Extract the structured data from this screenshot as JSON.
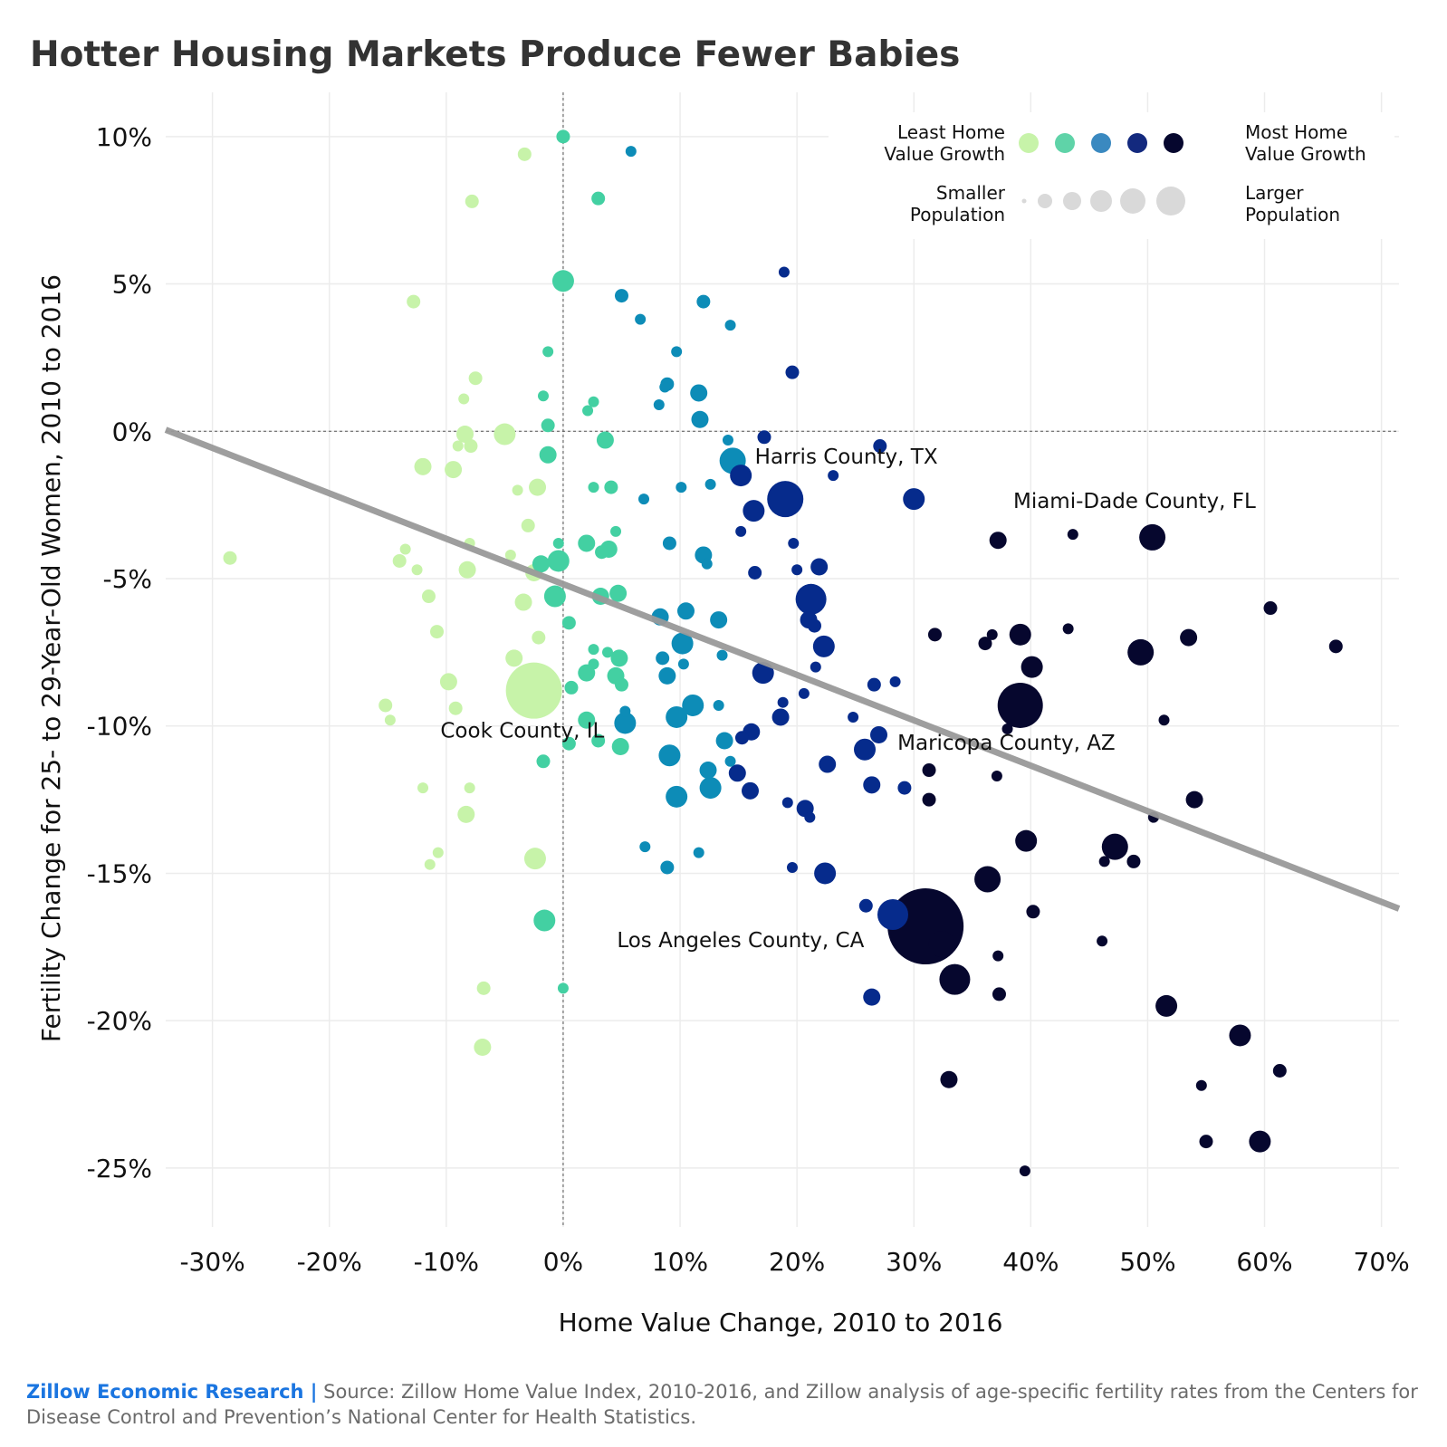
{
  "chart_data": {
    "type": "scatter",
    "title": "Hotter Housing Markets Produce Fewer Babies",
    "xlabel": "Home Value Change, 2010 to 2016",
    "ylabel": "Fertility Change for 25- to 29-Year-Old Women, 2010 to 2016",
    "xlim": [
      -34,
      71.5
    ],
    "ylim": [
      -27,
      11.5
    ],
    "x_ticks": [
      -30,
      -20,
      -10,
      0,
      10,
      20,
      30,
      40,
      50,
      60,
      70
    ],
    "x_tick_labels": [
      "-30%",
      "-20%",
      "-10%",
      "0%",
      "10%",
      "20%",
      "30%",
      "40%",
      "50%",
      "60%",
      "70%"
    ],
    "y_ticks": [
      10,
      5,
      0,
      -5,
      -10,
      -15,
      -20,
      -25
    ],
    "y_tick_labels": [
      "10%",
      "5%",
      "0%",
      "-5%",
      "-10%",
      "-15%",
      "-20%",
      "-25%"
    ],
    "grid": true,
    "reference_lines": {
      "x": 0,
      "y": 0
    },
    "trend_line": {
      "x": [
        -34,
        71.5
      ],
      "y": [
        0.05,
        -16.2
      ],
      "color": "#999999"
    },
    "color_scale": [
      "#c7f3a9",
      "#43d0a2",
      "#0d8cb7",
      "#062b8c",
      "#06072e"
    ],
    "legend": {
      "placement": "top-right",
      "color_left": "Least Home Value Growth",
      "color_right": "Most Home Value Growth",
      "size_left": "Smaller Population",
      "size_right": "Larger Population",
      "color_swatches": [
        "#c7f3a9",
        "#5fd3a8",
        "#3a89c0",
        "#13297e",
        "#06072e"
      ],
      "size_swatch_color": "#d9d9d9"
    },
    "annotations": [
      {
        "text": "Harris County, TX",
        "x": 16.4,
        "y": -1.1
      },
      {
        "text": "Miami-Dade County, FL",
        "x": 38.5,
        "y": -2.6
      },
      {
        "text": "Cook County, IL",
        "x": -10.5,
        "y": -10.4
      },
      {
        "text": "Maricopa County, AZ",
        "x": 28.6,
        "y": -10.8
      },
      {
        "text": "Los Angeles County, CA",
        "x": 4.6,
        "y": -17.5
      }
    ],
    "points": [
      {
        "x": 0.0,
        "y": 10.0,
        "s": 2,
        "c": 1
      },
      {
        "x": -3.3,
        "y": 9.4,
        "s": 2,
        "c": 0
      },
      {
        "x": 5.8,
        "y": 9.5,
        "s": 1,
        "c": 2
      },
      {
        "x": -7.8,
        "y": 7.8,
        "s": 2,
        "c": 0
      },
      {
        "x": 3.0,
        "y": 7.9,
        "s": 2,
        "c": 1
      },
      {
        "x": 0.0,
        "y": 5.1,
        "s": 4,
        "c": 1
      },
      {
        "x": -12.8,
        "y": 4.4,
        "s": 2,
        "c": 0
      },
      {
        "x": 5.0,
        "y": 4.6,
        "s": 2,
        "c": 2
      },
      {
        "x": 6.6,
        "y": 3.8,
        "s": 1,
        "c": 2
      },
      {
        "x": 12.0,
        "y": 4.4,
        "s": 2,
        "c": 2
      },
      {
        "x": 14.3,
        "y": 3.6,
        "s": 1,
        "c": 2
      },
      {
        "x": 18.9,
        "y": 5.4,
        "s": 1,
        "c": 3
      },
      {
        "x": -1.3,
        "y": 2.7,
        "s": 1,
        "c": 1
      },
      {
        "x": 9.7,
        "y": 2.7,
        "s": 1,
        "c": 2
      },
      {
        "x": -7.5,
        "y": 1.8,
        "s": 2,
        "c": 0
      },
      {
        "x": -8.5,
        "y": 1.1,
        "s": 1,
        "c": 0
      },
      {
        "x": -1.7,
        "y": 1.2,
        "s": 1,
        "c": 1
      },
      {
        "x": 2.6,
        "y": 1.0,
        "s": 1,
        "c": 1
      },
      {
        "x": 2.1,
        "y": 0.7,
        "s": 1,
        "c": 1
      },
      {
        "x": 8.9,
        "y": 1.6,
        "s": 2,
        "c": 2
      },
      {
        "x": 8.7,
        "y": 1.5,
        "s": 1,
        "c": 2
      },
      {
        "x": 11.6,
        "y": 1.3,
        "s": 3,
        "c": 2
      },
      {
        "x": 8.2,
        "y": 0.9,
        "s": 1,
        "c": 2
      },
      {
        "x": 11.7,
        "y": 0.4,
        "s": 3,
        "c": 2
      },
      {
        "x": 19.6,
        "y": 2.0,
        "s": 2,
        "c": 3
      },
      {
        "x": -1.3,
        "y": 0.2,
        "s": 2,
        "c": 1
      },
      {
        "x": -8.4,
        "y": -0.1,
        "s": 3,
        "c": 0
      },
      {
        "x": -5.0,
        "y": -0.1,
        "s": 4,
        "c": 0
      },
      {
        "x": -9.0,
        "y": -0.5,
        "s": 1,
        "c": 0
      },
      {
        "x": -7.9,
        "y": -0.5,
        "s": 2,
        "c": 0
      },
      {
        "x": 3.6,
        "y": -0.3,
        "s": 3,
        "c": 1
      },
      {
        "x": 14.1,
        "y": -0.3,
        "s": 1,
        "c": 2
      },
      {
        "x": 17.2,
        "y": -0.2,
        "s": 2,
        "c": 3
      },
      {
        "x": 27.1,
        "y": -0.5,
        "s": 2,
        "c": 3
      },
      {
        "x": -1.3,
        "y": -0.8,
        "s": 3,
        "c": 1
      },
      {
        "x": 14.5,
        "y": -1.0,
        "s": 5,
        "c": 2
      },
      {
        "x": -12.0,
        "y": -1.2,
        "s": 3,
        "c": 0
      },
      {
        "x": -9.4,
        "y": -1.3,
        "s": 3,
        "c": 0
      },
      {
        "x": 15.2,
        "y": -1.5,
        "s": 4,
        "c": 3
      },
      {
        "x": 23.1,
        "y": -1.5,
        "s": 1,
        "c": 3
      },
      {
        "x": -2.2,
        "y": -1.9,
        "s": 3,
        "c": 0
      },
      {
        "x": -3.9,
        "y": -2.0,
        "s": 1,
        "c": 0
      },
      {
        "x": 2.6,
        "y": -1.9,
        "s": 1,
        "c": 1
      },
      {
        "x": 4.1,
        "y": -1.9,
        "s": 2,
        "c": 1
      },
      {
        "x": 10.1,
        "y": -1.9,
        "s": 1,
        "c": 2
      },
      {
        "x": 12.6,
        "y": -1.8,
        "s": 1,
        "c": 2
      },
      {
        "x": 6.9,
        "y": -2.3,
        "s": 1,
        "c": 2
      },
      {
        "x": 19.0,
        "y": -2.3,
        "s": 7,
        "c": 3
      },
      {
        "x": 30.0,
        "y": -2.3,
        "s": 4,
        "c": 3
      },
      {
        "x": 16.3,
        "y": -2.7,
        "s": 4,
        "c": 3
      },
      {
        "x": 15.2,
        "y": -3.4,
        "s": 1,
        "c": 3
      },
      {
        "x": -3.0,
        "y": -3.2,
        "s": 2,
        "c": 0
      },
      {
        "x": 4.5,
        "y": -3.4,
        "s": 1,
        "c": 1
      },
      {
        "x": 43.6,
        "y": -3.5,
        "s": 1,
        "c": 4
      },
      {
        "x": 37.2,
        "y": -3.7,
        "s": 3,
        "c": 4
      },
      {
        "x": 50.4,
        "y": -3.6,
        "s": 5,
        "c": 4
      },
      {
        "x": -13.5,
        "y": -4.0,
        "s": 1,
        "c": 0
      },
      {
        "x": -8.0,
        "y": -3.8,
        "s": 1,
        "c": 0
      },
      {
        "x": -0.4,
        "y": -3.8,
        "s": 1,
        "c": 1
      },
      {
        "x": 2.0,
        "y": -3.8,
        "s": 3,
        "c": 1
      },
      {
        "x": 3.9,
        "y": -4.0,
        "s": 3,
        "c": 1
      },
      {
        "x": 3.3,
        "y": -4.1,
        "s": 2,
        "c": 1
      },
      {
        "x": 9.1,
        "y": -3.8,
        "s": 2,
        "c": 2
      },
      {
        "x": 19.7,
        "y": -3.8,
        "s": 1,
        "c": 3
      },
      {
        "x": -4.5,
        "y": -4.2,
        "s": 1,
        "c": 0
      },
      {
        "x": -28.5,
        "y": -4.3,
        "s": 2,
        "c": 0
      },
      {
        "x": -14.0,
        "y": -4.4,
        "s": 2,
        "c": 0
      },
      {
        "x": -12.5,
        "y": -4.7,
        "s": 1,
        "c": 0
      },
      {
        "x": -8.2,
        "y": -4.7,
        "s": 3,
        "c": 0
      },
      {
        "x": -2.5,
        "y": -4.8,
        "s": 3,
        "c": 0
      },
      {
        "x": -1.9,
        "y": -4.5,
        "s": 3,
        "c": 1
      },
      {
        "x": -0.4,
        "y": -4.4,
        "s": 4,
        "c": 1
      },
      {
        "x": 12.0,
        "y": -4.2,
        "s": 3,
        "c": 2
      },
      {
        "x": 12.3,
        "y": -4.5,
        "s": 1,
        "c": 2
      },
      {
        "x": 16.4,
        "y": -4.8,
        "s": 2,
        "c": 3
      },
      {
        "x": 20.0,
        "y": -4.7,
        "s": 1,
        "c": 3
      },
      {
        "x": 21.9,
        "y": -4.6,
        "s": 3,
        "c": 3
      },
      {
        "x": -11.5,
        "y": -5.6,
        "s": 2,
        "c": 0
      },
      {
        "x": -3.4,
        "y": -5.8,
        "s": 3,
        "c": 0
      },
      {
        "x": -0.7,
        "y": -5.6,
        "s": 4,
        "c": 1
      },
      {
        "x": 3.2,
        "y": -5.6,
        "s": 3,
        "c": 1
      },
      {
        "x": 4.7,
        "y": -5.5,
        "s": 3,
        "c": 1
      },
      {
        "x": 21.2,
        "y": -5.7,
        "s": 6,
        "c": 3
      },
      {
        "x": 60.5,
        "y": -6.0,
        "s": 2,
        "c": 4
      },
      {
        "x": 0.5,
        "y": -6.5,
        "s": 2,
        "c": 1
      },
      {
        "x": 8.3,
        "y": -6.3,
        "s": 3,
        "c": 2
      },
      {
        "x": 10.5,
        "y": -6.1,
        "s": 3,
        "c": 2
      },
      {
        "x": 13.3,
        "y": -6.4,
        "s": 3,
        "c": 2
      },
      {
        "x": 21.0,
        "y": -6.4,
        "s": 3,
        "c": 3
      },
      {
        "x": 21.5,
        "y": -6.6,
        "s": 2,
        "c": 3
      },
      {
        "x": -10.8,
        "y": -6.8,
        "s": 2,
        "c": 0
      },
      {
        "x": -2.1,
        "y": -7.0,
        "s": 2,
        "c": 0
      },
      {
        "x": 10.2,
        "y": -7.2,
        "s": 4,
        "c": 2
      },
      {
        "x": 22.3,
        "y": -7.3,
        "s": 4,
        "c": 3
      },
      {
        "x": 31.8,
        "y": -6.9,
        "s": 2,
        "c": 4
      },
      {
        "x": 36.1,
        "y": -7.2,
        "s": 2,
        "c": 4
      },
      {
        "x": 36.7,
        "y": -6.9,
        "s": 1,
        "c": 4
      },
      {
        "x": 39.1,
        "y": -6.9,
        "s": 4,
        "c": 4
      },
      {
        "x": 43.2,
        "y": -6.7,
        "s": 1,
        "c": 4
      },
      {
        "x": 49.4,
        "y": -7.5,
        "s": 5,
        "c": 4
      },
      {
        "x": 53.5,
        "y": -7.0,
        "s": 3,
        "c": 4
      },
      {
        "x": 66.1,
        "y": -7.3,
        "s": 2,
        "c": 4
      },
      {
        "x": -4.2,
        "y": -7.7,
        "s": 3,
        "c": 0
      },
      {
        "x": 2.6,
        "y": -7.4,
        "s": 1,
        "c": 1
      },
      {
        "x": 3.8,
        "y": -7.5,
        "s": 1,
        "c": 1
      },
      {
        "x": 4.8,
        "y": -7.7,
        "s": 3,
        "c": 1
      },
      {
        "x": 8.5,
        "y": -7.7,
        "s": 2,
        "c": 2
      },
      {
        "x": 10.3,
        "y": -7.9,
        "s": 1,
        "c": 2
      },
      {
        "x": 13.6,
        "y": -7.6,
        "s": 1,
        "c": 2
      },
      {
        "x": 21.6,
        "y": -8.0,
        "s": 1,
        "c": 3
      },
      {
        "x": 40.1,
        "y": -8.0,
        "s": 4,
        "c": 4
      },
      {
        "x": -2.5,
        "y": -8.8,
        "s": 9,
        "c": 0
      },
      {
        "x": 2.0,
        "y": -8.2,
        "s": 3,
        "c": 1
      },
      {
        "x": 2.6,
        "y": -7.9,
        "s": 1,
        "c": 1
      },
      {
        "x": 4.5,
        "y": -8.3,
        "s": 3,
        "c": 1
      },
      {
        "x": 8.9,
        "y": -8.3,
        "s": 3,
        "c": 2
      },
      {
        "x": 17.1,
        "y": -8.2,
        "s": 4,
        "c": 3
      },
      {
        "x": -9.8,
        "y": -8.5,
        "s": 3,
        "c": 0
      },
      {
        "x": 0.7,
        "y": -8.7,
        "s": 2,
        "c": 1
      },
      {
        "x": 5.0,
        "y": -8.6,
        "s": 2,
        "c": 1
      },
      {
        "x": 26.6,
        "y": -8.6,
        "s": 2,
        "c": 3
      },
      {
        "x": 28.4,
        "y": -8.5,
        "s": 1,
        "c": 3
      },
      {
        "x": -15.2,
        "y": -9.3,
        "s": 2,
        "c": 0
      },
      {
        "x": -9.2,
        "y": -9.4,
        "s": 2,
        "c": 0
      },
      {
        "x": 5.3,
        "y": -9.5,
        "s": 1,
        "c": 2
      },
      {
        "x": 11.1,
        "y": -9.3,
        "s": 4,
        "c": 2
      },
      {
        "x": 13.3,
        "y": -9.3,
        "s": 1,
        "c": 2
      },
      {
        "x": 18.8,
        "y": -9.2,
        "s": 1,
        "c": 3
      },
      {
        "x": 20.6,
        "y": -8.9,
        "s": 1,
        "c": 3
      },
      {
        "x": 39.1,
        "y": -9.3,
        "s": 8,
        "c": 4
      },
      {
        "x": -14.8,
        "y": -9.8,
        "s": 1,
        "c": 0
      },
      {
        "x": 2.0,
        "y": -9.8,
        "s": 3,
        "c": 1
      },
      {
        "x": 5.3,
        "y": -9.9,
        "s": 4,
        "c": 2
      },
      {
        "x": 9.7,
        "y": -9.7,
        "s": 4,
        "c": 2
      },
      {
        "x": 18.6,
        "y": -9.7,
        "s": 3,
        "c": 3
      },
      {
        "x": 24.8,
        "y": -9.7,
        "s": 1,
        "c": 3
      },
      {
        "x": 38.0,
        "y": -10.1,
        "s": 1,
        "c": 4
      },
      {
        "x": 51.4,
        "y": -9.8,
        "s": 1,
        "c": 4
      },
      {
        "x": 0.5,
        "y": -10.6,
        "s": 2,
        "c": 1
      },
      {
        "x": 3.0,
        "y": -10.5,
        "s": 2,
        "c": 1
      },
      {
        "x": 4.9,
        "y": -10.7,
        "s": 3,
        "c": 1
      },
      {
        "x": 13.8,
        "y": -10.5,
        "s": 3,
        "c": 2
      },
      {
        "x": 15.3,
        "y": -10.4,
        "s": 2,
        "c": 3
      },
      {
        "x": 16.1,
        "y": -10.2,
        "s": 3,
        "c": 3
      },
      {
        "x": 27.0,
        "y": -10.3,
        "s": 3,
        "c": 3
      },
      {
        "x": -1.7,
        "y": -11.2,
        "s": 2,
        "c": 1
      },
      {
        "x": 9.1,
        "y": -11.0,
        "s": 4,
        "c": 2
      },
      {
        "x": 12.4,
        "y": -11.5,
        "s": 3,
        "c": 2
      },
      {
        "x": 14.3,
        "y": -11.2,
        "s": 1,
        "c": 2
      },
      {
        "x": 14.9,
        "y": -11.6,
        "s": 3,
        "c": 3
      },
      {
        "x": 22.6,
        "y": -11.3,
        "s": 3,
        "c": 3
      },
      {
        "x": 25.8,
        "y": -10.8,
        "s": 4,
        "c": 3
      },
      {
        "x": 31.3,
        "y": -11.5,
        "s": 2,
        "c": 4
      },
      {
        "x": 37.1,
        "y": -11.7,
        "s": 1,
        "c": 4
      },
      {
        "x": -12.0,
        "y": -12.1,
        "s": 1,
        "c": 0
      },
      {
        "x": -8.0,
        "y": -12.1,
        "s": 1,
        "c": 0
      },
      {
        "x": 9.7,
        "y": -12.4,
        "s": 4,
        "c": 2
      },
      {
        "x": 12.6,
        "y": -12.1,
        "s": 4,
        "c": 2
      },
      {
        "x": 16.0,
        "y": -12.2,
        "s": 3,
        "c": 3
      },
      {
        "x": 26.4,
        "y": -12.0,
        "s": 3,
        "c": 3
      },
      {
        "x": 29.2,
        "y": -12.1,
        "s": 2,
        "c": 3
      },
      {
        "x": 31.3,
        "y": -12.5,
        "s": 2,
        "c": 4
      },
      {
        "x": 54.0,
        "y": -12.5,
        "s": 3,
        "c": 4
      },
      {
        "x": -8.3,
        "y": -13.0,
        "s": 3,
        "c": 0
      },
      {
        "x": 19.2,
        "y": -12.6,
        "s": 1,
        "c": 3
      },
      {
        "x": 20.7,
        "y": -12.8,
        "s": 3,
        "c": 3
      },
      {
        "x": 21.1,
        "y": -13.1,
        "s": 1,
        "c": 3
      },
      {
        "x": 50.5,
        "y": -13.1,
        "s": 1,
        "c": 4
      },
      {
        "x": -10.7,
        "y": -14.3,
        "s": 1,
        "c": 0
      },
      {
        "x": -11.4,
        "y": -14.7,
        "s": 1,
        "c": 0
      },
      {
        "x": -2.4,
        "y": -14.5,
        "s": 4,
        "c": 0
      },
      {
        "x": 7.0,
        "y": -14.1,
        "s": 1,
        "c": 2
      },
      {
        "x": 8.9,
        "y": -14.8,
        "s": 2,
        "c": 2
      },
      {
        "x": 11.6,
        "y": -14.3,
        "s": 1,
        "c": 2
      },
      {
        "x": 19.6,
        "y": -14.8,
        "s": 1,
        "c": 3
      },
      {
        "x": 22.4,
        "y": -15.0,
        "s": 4,
        "c": 3
      },
      {
        "x": 39.6,
        "y": -13.9,
        "s": 4,
        "c": 4
      },
      {
        "x": 46.3,
        "y": -14.6,
        "s": 1,
        "c": 4
      },
      {
        "x": 47.2,
        "y": -14.1,
        "s": 5,
        "c": 4
      },
      {
        "x": 48.8,
        "y": -14.6,
        "s": 2,
        "c": 4
      },
      {
        "x": 36.3,
        "y": -15.2,
        "s": 5,
        "c": 4
      },
      {
        "x": -1.6,
        "y": -16.6,
        "s": 4,
        "c": 1
      },
      {
        "x": 25.9,
        "y": -16.1,
        "s": 2,
        "c": 3
      },
      {
        "x": 28.2,
        "y": -16.4,
        "s": 6,
        "c": 3
      },
      {
        "x": 31.0,
        "y": -16.8,
        "s": 10,
        "c": 4
      },
      {
        "x": 32.4,
        "y": -17.4,
        "s": 5,
        "c": 4
      },
      {
        "x": 40.2,
        "y": -16.3,
        "s": 2,
        "c": 4
      },
      {
        "x": 37.2,
        "y": -17.8,
        "s": 1,
        "c": 4
      },
      {
        "x": 46.1,
        "y": -17.3,
        "s": 1,
        "c": 4
      },
      {
        "x": 33.5,
        "y": -18.6,
        "s": 6,
        "c": 4
      },
      {
        "x": -6.8,
        "y": -18.9,
        "s": 2,
        "c": 0
      },
      {
        "x": 0.0,
        "y": -18.9,
        "s": 1,
        "c": 1
      },
      {
        "x": 26.4,
        "y": -19.2,
        "s": 3,
        "c": 3
      },
      {
        "x": 37.3,
        "y": -19.1,
        "s": 2,
        "c": 4
      },
      {
        "x": 51.6,
        "y": -19.5,
        "s": 4,
        "c": 4
      },
      {
        "x": -6.9,
        "y": -20.9,
        "s": 3,
        "c": 0
      },
      {
        "x": 57.9,
        "y": -20.5,
        "s": 4,
        "c": 4
      },
      {
        "x": 33.0,
        "y": -22.0,
        "s": 3,
        "c": 4
      },
      {
        "x": 54.6,
        "y": -22.2,
        "s": 1,
        "c": 4
      },
      {
        "x": 61.3,
        "y": -21.7,
        "s": 2,
        "c": 4
      },
      {
        "x": 55.0,
        "y": -24.1,
        "s": 2,
        "c": 4
      },
      {
        "x": 59.6,
        "y": -24.1,
        "s": 4,
        "c": 4
      },
      {
        "x": 39.5,
        "y": -25.1,
        "s": 1,
        "c": 4
      }
    ]
  },
  "footer": {
    "brand": "Zillow Economic Research |",
    "source": "Source: Zillow Home Value Index, 2010-2016, and Zillow analysis of age-specific fertility rates from the Centers for Disease Control and Prevention’s National Center for Health Statistics."
  }
}
